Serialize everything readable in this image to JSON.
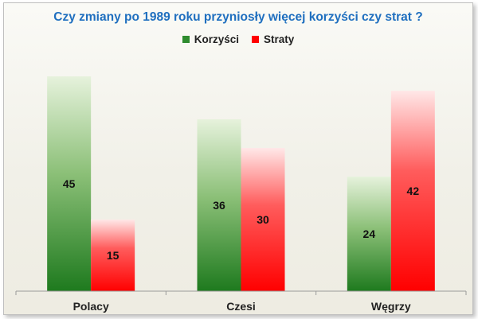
{
  "chart_data": {
    "type": "bar",
    "title": "Czy zmiany po 1989 roku przyniosły  więcej korzyści czy strat ?",
    "categories": [
      "Polacy",
      "Czesi",
      "Węgrzy"
    ],
    "series": [
      {
        "name": "Korzyści",
        "values": [
          45,
          36,
          24
        ],
        "color": "#2e8b2e"
      },
      {
        "name": "Straty",
        "values": [
          15,
          30,
          42
        ],
        "color": "#ff0000"
      }
    ],
    "ylim": [
      0,
      50
    ],
    "grid": false,
    "legend_position": "top-center",
    "data_labels": true
  }
}
